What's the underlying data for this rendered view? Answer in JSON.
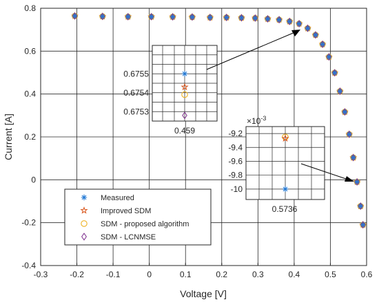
{
  "chart_data": {
    "type": "scatter",
    "xlabel": "Voltage [V]",
    "ylabel": "Current [A]",
    "xlim": [
      -0.3,
      0.6
    ],
    "ylim": [
      -0.4,
      0.8
    ],
    "xticks": [
      "-0.3",
      "-0.2",
      "-0.1",
      "0",
      "0.1",
      "0.2",
      "0.3",
      "0.4",
      "0.5",
      "0.6"
    ],
    "yticks": [
      "-0.4",
      "-0.2",
      "0",
      "0.2",
      "0.4",
      "0.6",
      "0.8"
    ],
    "grid": true,
    "legend_position": "bottom-left",
    "series": [
      {
        "name": "Measured",
        "marker": "asterisk",
        "color": "#1f77d4"
      },
      {
        "name": "Improved SDM",
        "marker": "star",
        "color": "#d9541a"
      },
      {
        "name": "SDM - proposed algorithm",
        "marker": "circle",
        "color": "#edb120"
      },
      {
        "name": "SDM - LCNMSE",
        "marker": "diamond",
        "color": "#7e2f8e"
      }
    ],
    "points": {
      "x": [
        -0.2057,
        -0.1291,
        -0.0588,
        0.0057,
        0.0646,
        0.1185,
        0.1678,
        0.2132,
        0.2545,
        0.2924,
        0.3269,
        0.3585,
        0.3873,
        0.4137,
        0.4373,
        0.459,
        0.4784,
        0.496,
        0.5119,
        0.5265,
        0.5398,
        0.5521,
        0.5633,
        0.5736,
        0.5833,
        0.59
      ],
      "y": [
        0.764,
        0.762,
        0.7605,
        0.7605,
        0.76,
        0.759,
        0.757,
        0.757,
        0.7555,
        0.754,
        0.7505,
        0.7465,
        0.7385,
        0.728,
        0.7065,
        0.6755,
        0.632,
        0.573,
        0.499,
        0.413,
        0.3165,
        0.212,
        0.1035,
        -0.01,
        -0.123,
        -0.21
      ]
    },
    "annotations": [
      {
        "label": "0.459",
        "x": 0.459,
        "yticks": [
          "0.6755",
          "0.6754",
          "0.6753"
        ],
        "ylim": [
          0.67525,
          0.67565
        ],
        "measured": 0.6755,
        "improved_sdm": 0.67543,
        "proposed": 0.67539,
        "lcnmse": 0.67528
      },
      {
        "label": "0.5736",
        "x": 0.5736,
        "exponent": "×10",
        "exponent_power": "-3",
        "yticks": [
          "-9.2",
          "-9.4",
          "-9.6",
          "-9.8",
          "-10"
        ],
        "ylim": [
          -10.15,
          -9.1
        ],
        "measured": -10.0,
        "improved_sdm": -9.27,
        "proposed": -9.25,
        "lcnmse": null
      }
    ]
  }
}
